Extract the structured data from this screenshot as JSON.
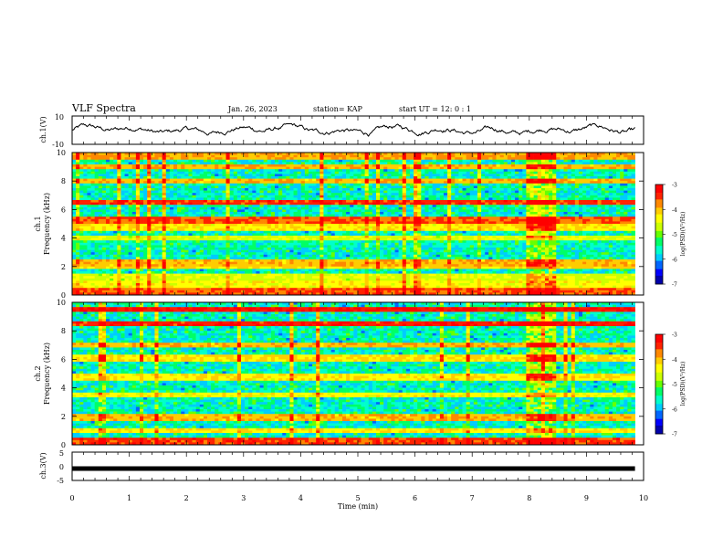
{
  "header": {
    "title": "VLF Spectra",
    "date": "Jan. 26, 2023",
    "station": "station= KAP",
    "start_ut": "start  UT  =   12: 0   : 1"
  },
  "colors": {
    "colormap": [
      "#0000aa",
      "#0000ff",
      "#0066ff",
      "#00ccff",
      "#00ffcc",
      "#00ff66",
      "#66ff00",
      "#ccff00",
      "#ffff00",
      "#ffcc00",
      "#ff8800",
      "#ff2200",
      "#ff0000",
      "#ffffff"
    ]
  },
  "chart_data": [
    {
      "type": "line",
      "name": "ch1-waveform",
      "ylabel": "ch.1(V)",
      "ylim": [
        -10,
        10
      ],
      "yticks": [
        "10",
        "-10"
      ],
      "xlim": [
        0,
        10
      ],
      "baseline": 0,
      "note_values": "quasi-random waveform fluctuating roughly between -4 and 4 V"
    },
    {
      "type": "heatmap",
      "name": "ch1-spectrogram",
      "ylabel": "ch.1\nFrequency (kHz)",
      "ylim": [
        0,
        10
      ],
      "yticks": [
        "0",
        "2",
        "4",
        "6",
        "8",
        "10"
      ],
      "xlim": [
        0,
        9.85
      ],
      "colorbar": {
        "label": "log(PSD)(V²/Hz)",
        "range": [
          -7,
          -3
        ],
        "ticks": [
          "-3",
          "-4",
          "-5",
          "-6",
          "-7"
        ]
      },
      "bands": [
        {
          "f": 0.3,
          "level": -3.6
        },
        {
          "f": 0.8,
          "level": -4.4
        },
        {
          "f": 1.2,
          "level": -4.6
        },
        {
          "f": 2.0,
          "level": -4.2
        },
        {
          "f": 2.3,
          "level": -4.0
        },
        {
          "f": 3.2,
          "level": -6.2
        },
        {
          "f": 3.6,
          "level": -5.8
        },
        {
          "f": 4.0,
          "level": -4.6
        },
        {
          "f": 4.8,
          "level": -4.3
        },
        {
          "f": 5.3,
          "level": -3.6
        },
        {
          "f": 6.5,
          "level": -3.5
        },
        {
          "f": 8.0,
          "level": -4.0
        },
        {
          "f": 9.0,
          "level": -4.0
        },
        {
          "f": 9.8,
          "level": -3.9
        }
      ],
      "event": {
        "t_start": 7.95,
        "t_end": 8.45
      }
    },
    {
      "type": "heatmap",
      "name": "ch2-spectrogram",
      "ylabel": "ch.2\nFrequency (kHz)",
      "ylim": [
        0,
        10
      ],
      "yticks": [
        "0",
        "2",
        "4",
        "6",
        "8",
        "10"
      ],
      "xlim": [
        0,
        9.85
      ],
      "colorbar": {
        "label": "log(PSD)(V²/Hz)",
        "range": [
          -7,
          -3
        ],
        "ticks": [
          "-3",
          "-4",
          "-5",
          "-6",
          "-7"
        ]
      },
      "bands": [
        {
          "f": 0.3,
          "level": -3.5
        },
        {
          "f": 1.0,
          "level": -4.3
        },
        {
          "f": 1.9,
          "level": -4.0
        },
        {
          "f": 3.0,
          "level": -6.0
        },
        {
          "f": 3.5,
          "level": -4.4
        },
        {
          "f": 4.8,
          "level": -4.3
        },
        {
          "f": 6.1,
          "level": -4.2
        },
        {
          "f": 7.0,
          "level": -4.0
        },
        {
          "f": 8.5,
          "level": -3.4
        },
        {
          "f": 9.5,
          "level": -3.3
        }
      ],
      "event": {
        "t_start": 7.95,
        "t_end": 8.45
      }
    },
    {
      "type": "line",
      "name": "ch3-waveform",
      "ylabel": "ch.3(V)",
      "ylim": [
        -5,
        5
      ],
      "yticks": [
        "5",
        "0",
        "-5"
      ],
      "xlim": [
        0,
        10
      ],
      "value_approx": -0.8
    }
  ],
  "xaxis": {
    "label": "Time  (min)",
    "ticks": [
      "0",
      "1",
      "2",
      "3",
      "4",
      "5",
      "6",
      "7",
      "8",
      "9",
      "10"
    ],
    "range": [
      0,
      10
    ]
  }
}
